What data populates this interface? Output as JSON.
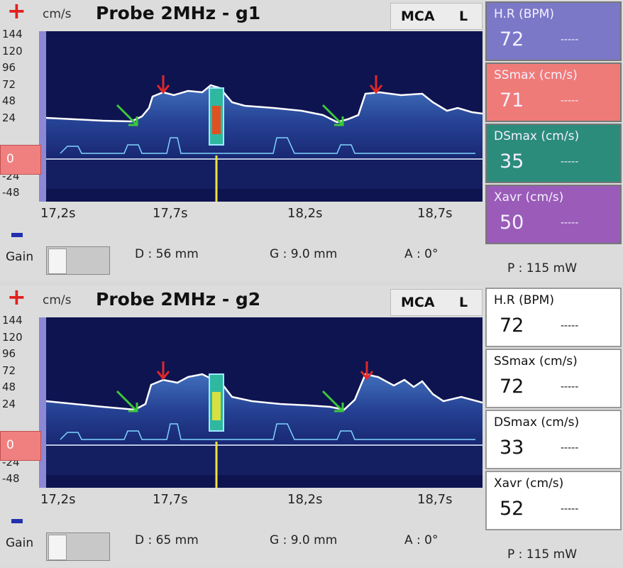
{
  "panels": [
    {
      "plus": "+",
      "unit": "cm/s",
      "title": "Probe 2MHz - g1",
      "vessel": "MCA",
      "side": "L",
      "y_labels": [
        "144",
        "120",
        "96",
        "72",
        "48",
        "24",
        "-24",
        "-48"
      ],
      "zero": "0",
      "x_labels": [
        "17,2s",
        "17,7s",
        "18,2s",
        "18,7s"
      ],
      "gain": "Gain",
      "depth": "D :  56 mm",
      "gate": "G : 9.0 mm",
      "angle": "A : 0°",
      "power": "P :  115 mW",
      "metrics": [
        {
          "label": "H.R (BPM)",
          "value": "72",
          "trend": "-----",
          "color": "#7b78c8"
        },
        {
          "label": "SSmax (cm/s)",
          "value": "71",
          "trend": "-----",
          "color": "#ef7b78"
        },
        {
          "label": "DSmax (cm/s)",
          "value": "35",
          "trend": "-----",
          "color": "#2b8c7c"
        },
        {
          "label": "Xavr (cm/s)",
          "value": "50",
          "trend": "-----",
          "color": "#9a5cb8"
        }
      ]
    },
    {
      "plus": "+",
      "unit": "cm/s",
      "title": "Probe 2MHz - g2",
      "vessel": "MCA",
      "side": "L",
      "y_labels": [
        "144",
        "120",
        "96",
        "72",
        "48",
        "24",
        "-24",
        "-48"
      ],
      "zero": "0",
      "x_labels": [
        "17,2s",
        "17,7s",
        "18,2s",
        "18,7s"
      ],
      "gain": "Gain",
      "depth": "D :  65 mm",
      "gate": "G : 9.0 mm",
      "angle": "A : 0°",
      "power": "P :  115 mW",
      "metrics": [
        {
          "label": "H.R (BPM)",
          "value": "72",
          "trend": "-----",
          "color": "#ffffff"
        },
        {
          "label": "SSmax (cm/s)",
          "value": "72",
          "trend": "-----",
          "color": "#ffffff"
        },
        {
          "label": "DSmax (cm/s)",
          "value": "33",
          "trend": "-----",
          "color": "#ffffff"
        },
        {
          "label": "Xavr (cm/s)",
          "value": "52",
          "trend": "-----",
          "color": "#ffffff"
        }
      ]
    }
  ]
}
